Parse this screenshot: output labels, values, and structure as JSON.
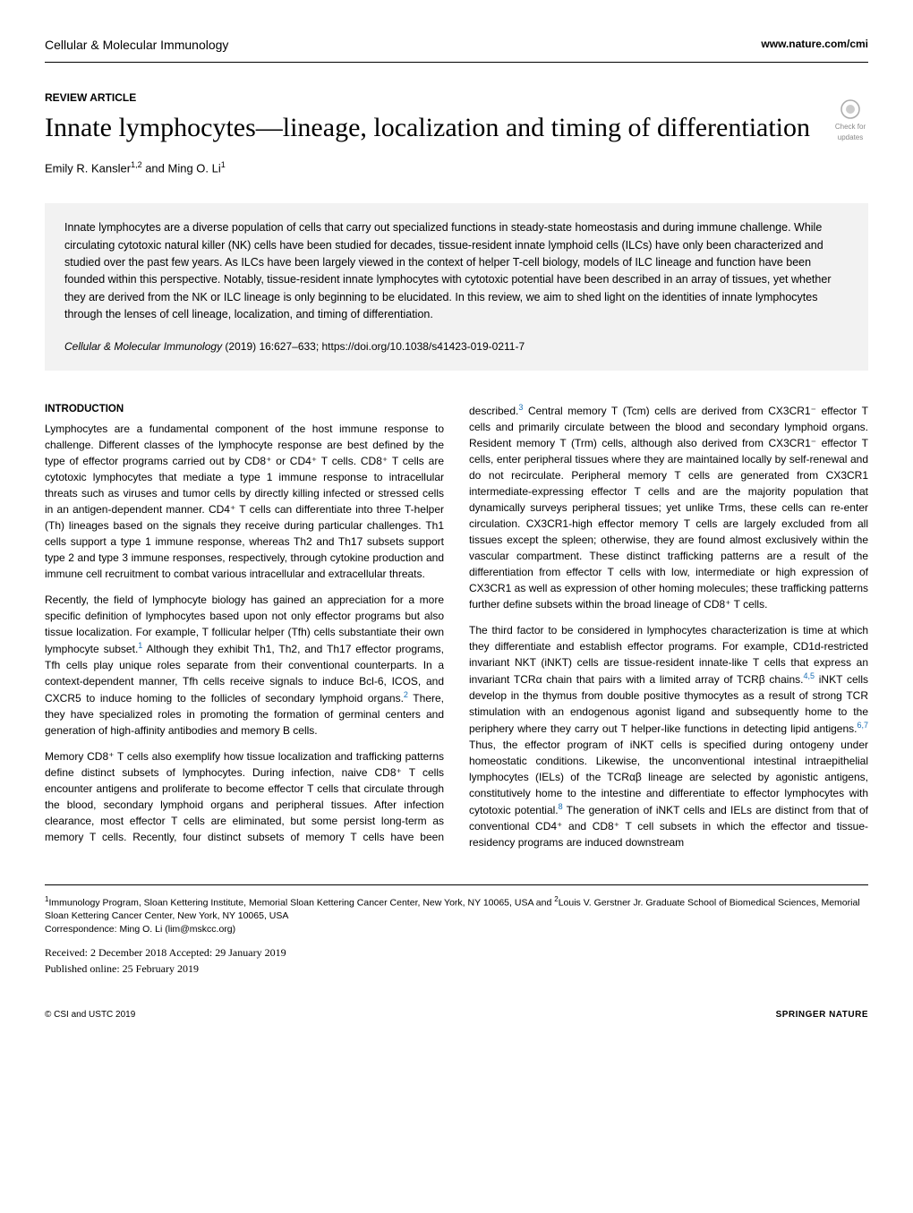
{
  "header": {
    "journal": "Cellular & Molecular Immunology",
    "website": "www.nature.com/cmi",
    "check_updates": "Check for updates"
  },
  "article": {
    "type": "REVIEW ARTICLE",
    "title": "Innate lymphocytes—lineage, localization and timing of differentiation",
    "authors_html": "Emily R. Kansler<sup>1,2</sup> and Ming O. Li<sup>1</sup>"
  },
  "abstract": {
    "text": "Innate lymphocytes are a diverse population of cells that carry out specialized functions in steady-state homeostasis and during immune challenge. While circulating cytotoxic natural killer (NK) cells have been studied for decades, tissue-resident innate lymphoid cells (ILCs) have only been characterized and studied over the past few years. As ILCs have been largely viewed in the context of helper T-cell biology, models of ILC lineage and function have been founded within this perspective. Notably, tissue-resident innate lymphocytes with cytotoxic potential have been described in an array of tissues, yet whether they are derived from the NK or ILC lineage is only beginning to be elucidated. In this review, we aim to shed light on the identities of innate lymphocytes through the lenses of cell lineage, localization, and timing of differentiation."
  },
  "citation": {
    "journal": "Cellular & Molecular Immunology",
    "details": "(2019) 16:627–633; https://doi.org/10.1038/s41423-019-0211-7"
  },
  "body": {
    "section_head": "INTRODUCTION",
    "p1": "Lymphocytes are a fundamental component of the host immune response to challenge. Different classes of the lymphocyte response are best defined by the type of effector programs carried out by CD8⁺ or CD4⁺ T cells. CD8⁺ T cells are cytotoxic lymphocytes that mediate a type 1 immune response to intracellular threats such as viruses and tumor cells by directly killing infected or stressed cells in an antigen-dependent manner. CD4⁺ T cells can differentiate into three T-helper (Th) lineages based on the signals they receive during particular challenges. Th1 cells support a type 1 immune response, whereas Th2 and Th17 subsets support type 2 and type 3 immune responses, respectively, through cytokine production and immune cell recruitment to combat various intracellular and extracellular threats.",
    "p2": "Recently, the field of lymphocyte biology has gained an appreciation for a more specific definition of lymphocytes based upon not only effector programs but also tissue localization. For example, T follicular helper (Tfh) cells substantiate their own lymphocyte subset.",
    "p2_ref": "1",
    "p2_cont": " Although they exhibit Th1, Th2, and Th17 effector programs, Tfh cells play unique roles separate from their conventional counterparts. In a context-dependent manner, Tfh cells receive signals to induce Bcl-6, ICOS, and CXCR5 to induce homing to the follicles of secondary lymphoid organs.",
    "p2_ref2": "2",
    "p2_cont2": " There, they have specialized roles in promoting the formation of germinal centers and generation of high-affinity antibodies and memory B cells.",
    "p3": "Memory CD8⁺ T cells also exemplify how tissue localization and trafficking patterns define distinct subsets of lymphocytes. During infection, naive CD8⁺ T cells encounter antigens and proliferate to become effector T cells that circulate through the blood, secondary lymphoid organs and peripheral tissues. After infection clearance, most effector T cells are eliminated, but some persist long-term as memory T cells. Recently, four distinct subsets of memory T cells have been described.",
    "p3_ref": "3",
    "p3_cont": " Central memory T (Tcm) cells are derived from CX3CR1⁻ effector T cells and primarily circulate between the blood and secondary lymphoid organs. Resident memory T (Trm) cells, although also derived from CX3CR1⁻ effector T cells, enter peripheral tissues where they are maintained locally by self-renewal and do not recirculate. Peripheral memory T cells are generated from CX3CR1 intermediate-expressing effector T cells and are the majority population that dynamically surveys peripheral tissues; yet unlike Trms, these cells can re-enter circulation. CX3CR1-high effector memory T cells are largely excluded from all tissues except the spleen; otherwise, they are found almost exclusively within the vascular compartment. These distinct trafficking patterns are a result of the differentiation from effector T cells with low, intermediate or high expression of CX3CR1 as well as expression of other homing molecules; these trafficking patterns further define subsets within the broad lineage of CD8⁺ T cells.",
    "p4": "The third factor to be considered in lymphocytes characterization is time at which they differentiate and establish effector programs. For example, CD1d-restricted invariant NKT (iNKT) cells are tissue-resident innate-like T cells that express an invariant TCRα chain that pairs with a limited array of TCRβ chains.",
    "p4_ref": "4,5",
    "p4_cont": " iNKT cells develop in the thymus from double positive thymocytes as a result of strong TCR stimulation with an endogenous agonist ligand and subsequently home to the periphery where they carry out T helper-like functions in detecting lipid antigens.",
    "p4_ref2": "6,7",
    "p4_cont2": " Thus, the effector program of iNKT cells is specified during ontogeny under homeostatic conditions. Likewise, the unconventional intestinal intraepithelial lymphocytes (IELs) of the TCRαβ lineage are selected by agonistic antigens, constitutively home to the intestine and differentiate to effector lymphocytes with cytotoxic potential.",
    "p4_ref3": "8",
    "p4_cont3": " The generation of iNKT cells and IELs are distinct from that of conventional CD4⁺ and CD8⁺ T cell subsets in which the effector and tissue-residency programs are induced downstream"
  },
  "affiliations": {
    "text_html": "<sup>1</sup>Immunology Program, Sloan Kettering Institute, Memorial Sloan Kettering Cancer Center, New York, NY 10065, USA and <sup>2</sup>Louis V. Gerstner Jr. Graduate School of Biomedical Sciences, Memorial Sloan Kettering Cancer Center, New York, NY 10065, USA",
    "correspondence": "Correspondence: Ming O. Li (lim@mskcc.org)"
  },
  "dates": {
    "received": "Received: 2 December 2018 Accepted: 29 January 2019",
    "published": "Published online: 25 February 2019"
  },
  "footer": {
    "copyright": "© CSI and USTC 2019",
    "publisher": "SPRINGER NATURE"
  }
}
